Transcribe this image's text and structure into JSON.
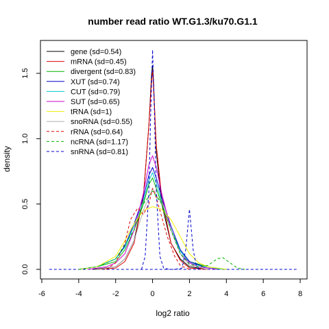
{
  "chart_data": {
    "type": "line",
    "title": "number read ratio WT.G1.3/ku70.G1.1",
    "xlabel": "log2 ratio",
    "ylabel": "density",
    "xlim": [
      -6,
      8
    ],
    "ylim": [
      0,
      1.7
    ],
    "xticks": [
      -6,
      -4,
      -2,
      0,
      2,
      4,
      6,
      8
    ],
    "yticks": [
      0.0,
      0.5,
      1.0,
      1.5
    ],
    "xtick_labels": [
      "-6",
      "-4",
      "-2",
      "0",
      "2",
      "4",
      "6",
      "8"
    ],
    "ytick_labels": [
      "0.0",
      "0.5",
      "1.0",
      "1.5"
    ],
    "legend_position": "top-left",
    "grid": false,
    "series": [
      {
        "name": "gene (sd=0.54)",
        "color": "#000000",
        "dash": "solid",
        "x": [
          -3.2,
          -2,
          -1.5,
          -1,
          -0.5,
          -0.2,
          -0.05,
          0,
          0.05,
          0.2,
          0.5,
          1,
          1.5,
          2,
          3
        ],
        "y": [
          0,
          0.02,
          0.08,
          0.22,
          0.55,
          1.1,
          1.5,
          1.56,
          1.45,
          0.9,
          0.5,
          0.2,
          0.08,
          0.02,
          0
        ]
      },
      {
        "name": "mRNA (sd=0.45)",
        "color": "#DF0000",
        "dash": "solid",
        "x": [
          -3,
          -2,
          -1.5,
          -1,
          -0.5,
          -0.2,
          -0.05,
          0,
          0.05,
          0.2,
          0.5,
          1,
          1.5,
          2,
          3
        ],
        "y": [
          0,
          0.01,
          0.06,
          0.2,
          0.55,
          1.1,
          1.45,
          1.52,
          1.4,
          0.95,
          0.55,
          0.2,
          0.07,
          0.01,
          0
        ]
      },
      {
        "name": "divergent (sd=0.83)",
        "color": "#00B400",
        "dash": "solid",
        "x": [
          -4,
          -3,
          -2,
          -1.5,
          -1,
          -0.5,
          -0.2,
          0,
          0.2,
          0.5,
          1,
          1.5,
          2,
          3,
          4
        ],
        "y": [
          0,
          0.02,
          0.06,
          0.15,
          0.3,
          0.5,
          0.65,
          0.7,
          0.62,
          0.5,
          0.3,
          0.15,
          0.06,
          0.02,
          0
        ]
      },
      {
        "name": "XUT (sd=0.74)",
        "color": "#0000CD",
        "dash": "solid",
        "x": [
          -4,
          -3,
          -2,
          -1.5,
          -1,
          -0.5,
          -0.2,
          0,
          0.2,
          0.5,
          1,
          1.5,
          2,
          3,
          4
        ],
        "y": [
          0,
          0.02,
          0.08,
          0.18,
          0.35,
          0.55,
          0.72,
          0.78,
          0.7,
          0.55,
          0.33,
          0.15,
          0.06,
          0.01,
          0
        ]
      },
      {
        "name": "CUT (sd=0.79)",
        "color": "#00C8C8",
        "dash": "solid",
        "x": [
          -4,
          -3,
          -2,
          -1.5,
          -1,
          -0.5,
          -0.2,
          0,
          0.2,
          0.5,
          1,
          1.5,
          2,
          3,
          4
        ],
        "y": [
          0,
          0.02,
          0.08,
          0.17,
          0.33,
          0.52,
          0.68,
          0.74,
          0.66,
          0.52,
          0.3,
          0.14,
          0.05,
          0.01,
          0
        ]
      },
      {
        "name": "SUT (sd=0.65)",
        "color": "#D000D0",
        "dash": "solid",
        "x": [
          -3.5,
          -2.5,
          -2,
          -1.5,
          -1,
          -0.5,
          -0.2,
          0,
          0.2,
          0.5,
          1,
          1.5,
          2,
          2.5,
          3.5
        ],
        "y": [
          0,
          0.02,
          0.05,
          0.12,
          0.3,
          0.58,
          0.8,
          0.87,
          0.78,
          0.58,
          0.3,
          0.12,
          0.05,
          0.02,
          0
        ]
      },
      {
        "name": "tRNA (sd=1)",
        "color": "#EEEE00",
        "dash": "solid",
        "x": [
          -4,
          -3,
          -2,
          -1.5,
          -1,
          -0.5,
          0,
          0.5,
          1,
          1.5,
          2,
          2.5,
          3,
          4
        ],
        "y": [
          0,
          0.02,
          0.1,
          0.22,
          0.35,
          0.45,
          0.48,
          0.46,
          0.38,
          0.25,
          0.12,
          0.05,
          0.02,
          0
        ]
      },
      {
        "name": "snoRNA (sd=0.55)",
        "color": "#B0B0B0",
        "dash": "solid",
        "x": [
          -3,
          -2,
          -1.5,
          -1,
          -0.5,
          0,
          0.3,
          0.6,
          1,
          1.5,
          2,
          3
        ],
        "y": [
          0,
          0.02,
          0.08,
          0.22,
          0.45,
          0.62,
          0.55,
          0.48,
          0.3,
          0.12,
          0.03,
          0
        ]
      },
      {
        "name": "rRNA (sd=0.64)",
        "color": "#DF0000",
        "dash": "dashed",
        "x": [
          -2.5,
          -2,
          -1.5,
          -1.2,
          -0.8,
          -0.5,
          -0.2,
          0,
          0.2,
          0.5,
          0.8,
          1.2,
          1.5,
          2
        ],
        "y": [
          0,
          0.05,
          0.2,
          0.38,
          0.47,
          0.42,
          0.5,
          0.62,
          0.55,
          0.4,
          0.25,
          0.1,
          0.03,
          0
        ]
      },
      {
        "name": "ncRNA (sd=1.17)",
        "color": "#00B400",
        "dash": "dashed",
        "x": [
          -4,
          -3,
          -2,
          -1,
          -0.5,
          0,
          0.5,
          1,
          1.5,
          2,
          2.5,
          3,
          3.5,
          3.8,
          4.2,
          4.6,
          5
        ],
        "y": [
          0,
          0.02,
          0.08,
          0.3,
          0.5,
          0.6,
          0.5,
          0.3,
          0.12,
          0.04,
          0.02,
          0.03,
          0.08,
          0.09,
          0.05,
          0.01,
          0
        ]
      },
      {
        "name": "snRNA (sd=0.81)",
        "color": "#0000CD",
        "dash": "dashed",
        "x": [
          -0.6,
          -0.4,
          -0.2,
          -0.1,
          0,
          0.1,
          0.2,
          0.4,
          0.6,
          0.9,
          1.2,
          1.6,
          1.8,
          2,
          2.2,
          2.4,
          2.6
        ],
        "y": [
          0,
          0.1,
          0.6,
          1.2,
          1.68,
          1.2,
          0.6,
          0.1,
          0.01,
          0,
          0,
          0.01,
          0.15,
          0.46,
          0.15,
          0.01,
          0
        ]
      }
    ],
    "baseline_x": [
      -5.6,
      7.8
    ]
  }
}
